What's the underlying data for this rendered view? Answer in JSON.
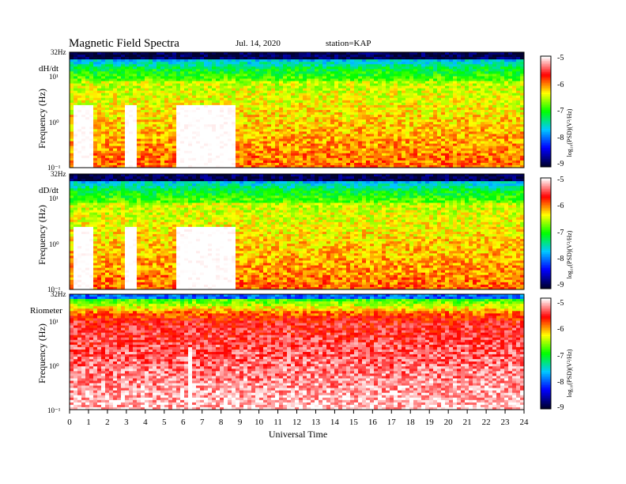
{
  "header": {
    "title": "Magnetic Field Spectra",
    "date": "Jul. 14, 2020",
    "station": "station=KAP"
  },
  "chart_data": [
    {
      "type": "heatmap",
      "panel_label": "dH/dt",
      "ylabel": "Frequency (Hz)",
      "y_ticks": [
        "32Hz",
        "10¹",
        "10⁰",
        "10⁻¹"
      ],
      "colorbar": {
        "label": "log₁₀(PSD)(V²/Hz)",
        "ticks": [
          "-5",
          "-6",
          "-7",
          "-8",
          "-9"
        ],
        "range": [
          -9,
          -5
        ]
      },
      "description_values": {
        "background_level": -6.5,
        "low_power_gaps_utc": [
          [
            0.1,
            1.2
          ],
          [
            2.9,
            3.5
          ],
          [
            5.6,
            8.6
          ]
        ]
      }
    },
    {
      "type": "heatmap",
      "panel_label": "dD/dt",
      "ylabel": "Frequency (Hz)",
      "y_ticks": [
        "32Hz",
        "10¹",
        "10⁰",
        "10⁻¹"
      ],
      "colorbar": {
        "label": "log₁₀(PSD)(V²/Hz)",
        "ticks": [
          "-5",
          "-6",
          "-7",
          "-8",
          "-9"
        ],
        "range": [
          -9,
          -5
        ]
      },
      "description_values": {
        "background_level": -6.5,
        "low_power_gaps_utc": [
          [
            0.1,
            1.2
          ],
          [
            2.9,
            3.5
          ],
          [
            5.6,
            8.6
          ]
        ]
      }
    },
    {
      "type": "heatmap",
      "panel_label": "Riometer",
      "ylabel": "Frequency (Hz)",
      "y_ticks": [
        "32Hz",
        "10¹",
        "10⁰",
        "10⁻¹"
      ],
      "colorbar": {
        "label": "log₁₀(PSD)(V²/Hz)",
        "ticks": [
          "-5",
          "-6",
          "-7",
          "-8",
          "-9"
        ],
        "range": [
          -9,
          -5
        ]
      },
      "description_values": {
        "background_level": -5.6,
        "low_power_gaps_utc": [
          [
            6.1,
            6.4
          ]
        ]
      }
    }
  ],
  "x_axis": {
    "label": "Universal Time",
    "range": [
      0,
      24
    ],
    "ticks": [
      "0",
      "1",
      "2",
      "3",
      "4",
      "5",
      "6",
      "7",
      "8",
      "9",
      "10",
      "11",
      "12",
      "13",
      "14",
      "15",
      "16",
      "17",
      "18",
      "19",
      "20",
      "21",
      "22",
      "23",
      "24"
    ]
  },
  "colors": {
    "background": "#ffffff",
    "colormap": [
      "#000030",
      "#0000ff",
      "#00c8ff",
      "#00ff00",
      "#ffff00",
      "#ff0000",
      "#ffffff"
    ]
  }
}
